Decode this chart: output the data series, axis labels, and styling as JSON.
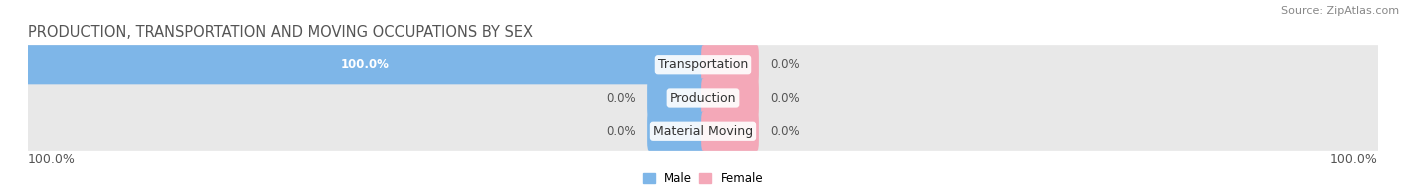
{
  "title": "PRODUCTION, TRANSPORTATION AND MOVING OCCUPATIONS BY SEX",
  "source": "Source: ZipAtlas.com",
  "categories": [
    "Transportation",
    "Production",
    "Material Moving"
  ],
  "male_values": [
    100.0,
    0.0,
    0.0
  ],
  "female_values": [
    0.0,
    0.0,
    0.0
  ],
  "male_color": "#7EB6E8",
  "female_color": "#F4A8B8",
  "bar_bg_color": "#E8E8E8",
  "bar_height": 0.62,
  "xlim_left": -100,
  "xlim_right": 100,
  "left_axis_label": "100.0%",
  "right_axis_label": "100.0%",
  "title_fontsize": 10.5,
  "axis_label_fontsize": 9,
  "annotation_fontsize": 8.5,
  "cat_label_fontsize": 9,
  "source_fontsize": 8,
  "male_label_color": "#FFFFFF",
  "value_label_color": "#555555"
}
